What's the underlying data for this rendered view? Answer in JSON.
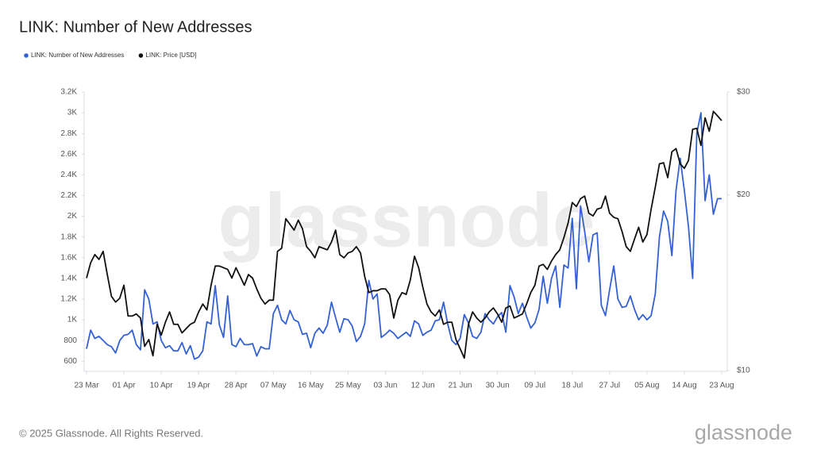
{
  "chart_data": {
    "type": "line",
    "title": "LINK: Number of New Addresses",
    "watermark": "glassnode",
    "footer": "© 2025 Glassnode. All Rights Reserved.",
    "logo": "glassnode",
    "categories": [
      "23 Mar",
      null,
      null,
      null,
      null,
      null,
      null,
      null,
      null,
      "01 Apr",
      null,
      null,
      null,
      null,
      null,
      null,
      null,
      null,
      "10 Apr",
      null,
      null,
      null,
      null,
      null,
      null,
      null,
      null,
      "19 Apr",
      null,
      null,
      null,
      null,
      null,
      null,
      null,
      null,
      "28 Apr",
      null,
      null,
      null,
      null,
      null,
      null,
      null,
      null,
      "07 May",
      null,
      null,
      null,
      null,
      null,
      null,
      null,
      null,
      "16 May",
      null,
      null,
      null,
      null,
      null,
      null,
      null,
      null,
      "25 May",
      null,
      null,
      null,
      null,
      null,
      null,
      null,
      null,
      "03 Jun",
      null,
      null,
      null,
      null,
      null,
      null,
      null,
      null,
      "12 Jun",
      null,
      null,
      null,
      null,
      null,
      null,
      null,
      null,
      "21 Jun",
      null,
      null,
      null,
      null,
      null,
      null,
      null,
      null,
      "30 Jun",
      null,
      null,
      null,
      null,
      null,
      null,
      null,
      null,
      "09 Jul",
      null,
      null,
      null,
      null,
      null,
      null,
      null,
      null,
      "18 Jul",
      null,
      null,
      null,
      null,
      null,
      null,
      null,
      null,
      "27 Jul",
      null,
      null,
      null,
      null,
      null,
      null,
      null,
      null,
      "05 Aug",
      null,
      null,
      null,
      null,
      null,
      null,
      null,
      null,
      "14 Aug",
      null,
      null,
      null,
      null,
      null,
      null,
      null,
      null,
      "23 Aug"
    ],
    "series": [
      {
        "name": "LINK: Number of New Addresses",
        "color": "#3461d4",
        "values": [
          720,
          900,
          820,
          840,
          800,
          760,
          740,
          680,
          800,
          850,
          860,
          900,
          760,
          710,
          1290,
          1200,
          960,
          980,
          800,
          730,
          750,
          700,
          700,
          780,
          670,
          750,
          620,
          640,
          700,
          980,
          960,
          1330,
          950,
          830,
          1230,
          760,
          740,
          820,
          760,
          760,
          770,
          650,
          740,
          720,
          720,
          1060,
          1140,
          1000,
          960,
          1090,
          1000,
          980,
          860,
          870,
          730,
          870,
          920,
          870,
          950,
          1170,
          1020,
          880,
          1010,
          1000,
          940,
          790,
          840,
          960,
          1380,
          1200,
          1250,
          830,
          860,
          900,
          870,
          820,
          850,
          880,
          840,
          990,
          960,
          850,
          880,
          900,
          990,
          1000,
          1170,
          960,
          800,
          760,
          820,
          1050,
          970,
          840,
          820,
          880,
          1060,
          1000,
          960,
          1030,
          1070,
          880,
          1330,
          1220,
          1060,
          1160,
          1030,
          920,
          970,
          1100,
          1420,
          1160,
          1400,
          1520,
          1120,
          1530,
          1500,
          1980,
          1300,
          2100,
          1850,
          1560,
          1820,
          1840,
          1140,
          1040,
          1290,
          1520,
          1200,
          1120,
          1130,
          1230,
          1100,
          1000,
          1050,
          1000,
          1040,
          1250,
          1800,
          2050,
          1950,
          1620,
          2250,
          2560,
          2250,
          1900,
          1400,
          2800,
          3000,
          2150,
          2400,
          2020,
          2170,
          2170
        ]
      },
      {
        "name": "LINK: Price [USD]",
        "color": "#111111",
        "axis": "y2",
        "values": [
          14.4,
          15.3,
          15.8,
          15.5,
          16.0,
          14.6,
          13.4,
          13.1,
          13.3,
          14.0,
          12.4,
          12.4,
          12.5,
          12.3,
          11.0,
          11.3,
          10.6,
          12.0,
          11.5,
          12.1,
          12.6,
          12.0,
          12.0,
          11.6,
          11.8,
          12.0,
          12.1,
          12.6,
          13.0,
          12.7,
          14.0,
          15.1,
          15.1,
          15.0,
          14.9,
          14.4,
          15.0,
          14.5,
          14.0,
          14.6,
          14.4,
          13.8,
          13.3,
          13.0,
          13.2,
          13.2,
          16.0,
          16.2,
          18.2,
          17.8,
          17.4,
          18.1,
          17.5,
          16.3,
          16.0,
          15.6,
          16.3,
          16.2,
          16.1,
          16.6,
          17.4,
          15.8,
          15.6,
          15.9,
          16.0,
          16.3,
          15.9,
          14.5,
          13.6,
          13.7,
          13.7,
          13.8,
          13.8,
          13.5,
          12.3,
          13.2,
          13.6,
          13.5,
          14.3,
          15.7,
          15.0,
          13.9,
          13.0,
          12.6,
          12.4,
          12.7,
          12.0,
          12.1,
          12.1,
          11.3,
          10.9,
          10.5,
          12.0,
          12.6,
          12.3,
          12.1,
          12.3,
          12.6,
          12.8,
          12.5,
          12.1,
          12.8,
          12.9,
          12.3,
          12.4,
          12.5,
          13.0,
          13.6,
          14.0,
          15.1,
          15.2,
          14.9,
          15.4,
          15.8,
          16.1,
          16.9,
          17.9,
          19.4,
          19.1,
          19.7,
          19.9,
          18.6,
          18.4,
          18.9,
          19.0,
          19.9,
          18.6,
          18.3,
          18.2,
          17.3,
          16.3,
          16.0,
          16.8,
          17.6,
          16.6,
          17.1,
          18.9,
          20.6,
          22.6,
          22.7,
          21.4,
          23.7,
          24.0,
          22.6,
          22.2,
          22.9,
          25.9,
          26.0,
          24.3,
          27.1,
          25.7,
          27.8,
          27.3,
          26.8
        ]
      }
    ],
    "ylim": [
      510,
      3200
    ],
    "yticks": [
      600,
      800,
      {
        "value": 1000,
        "label": "1K"
      },
      {
        "value": 1200,
        "label": "1.2K"
      },
      {
        "value": 1400,
        "label": "1.4K"
      },
      {
        "value": 1600,
        "label": "1.6K"
      },
      {
        "value": 1800,
        "label": "1.8K"
      },
      {
        "value": 2000,
        "label": "2K"
      },
      {
        "value": 2200,
        "label": "2.2K"
      },
      {
        "value": 2400,
        "label": "2.4K"
      },
      {
        "value": 2600,
        "label": "2.6K"
      },
      {
        "value": 2800,
        "label": "2.8K"
      },
      {
        "value": 3000,
        "label": "3K"
      },
      {
        "value": 3200,
        "label": "3.2K"
      }
    ],
    "y2lim": [
      10,
      30
    ],
    "y2scale": "log",
    "y2ticks": [
      {
        "value": 10,
        "label": "$10"
      },
      {
        "value": 20,
        "label": "$20"
      },
      {
        "value": 30,
        "label": "$30"
      }
    ],
    "grid": false
  }
}
